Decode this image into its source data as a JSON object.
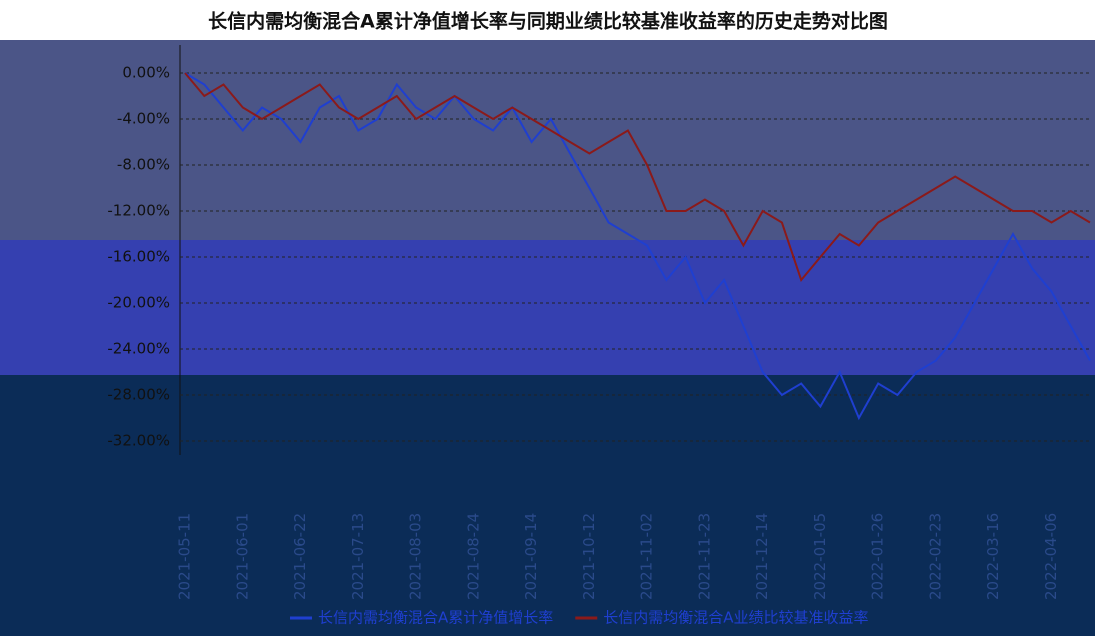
{
  "chart_data": {
    "type": "line",
    "title": "长信内需均衡混合A累计净值增长率与同期业绩比较基准收益率的历史走势对比图",
    "categories": [
      "2021-05-11",
      null,
      null,
      "2021-06-01",
      null,
      null,
      "2021-06-22",
      null,
      null,
      "2021-07-13",
      null,
      null,
      "2021-08-03",
      null,
      null,
      "2021-08-24",
      null,
      null,
      "2021-09-14",
      null,
      null,
      "2021-10-12",
      null,
      null,
      "2021-11-02",
      null,
      null,
      "2021-11-23",
      null,
      null,
      "2021-12-14",
      null,
      null,
      "2022-01-05",
      null,
      null,
      "2022-01-26",
      null,
      null,
      "2022-02-23",
      null,
      null,
      "2022-03-16",
      null,
      null,
      "2022-04-06",
      null,
      null
    ],
    "series": [
      {
        "name": "长信内需均衡混合A累计净值增长率",
        "color": "#1f3fd0",
        "values": [
          0,
          -1,
          -3,
          -5,
          -3,
          -4,
          -6,
          -3,
          -2,
          -5,
          -4,
          -1,
          -3,
          -4,
          -2,
          -4,
          -5,
          -3,
          -6,
          -4,
          -7,
          -10,
          -13,
          -14,
          -15,
          -18,
          -16,
          -20,
          -18,
          -22,
          -26,
          -28,
          -27,
          -29,
          -26,
          -30,
          -27,
          -28,
          -26,
          -25,
          -23,
          -20,
          -17,
          -14,
          -17,
          -19,
          -22,
          -25
        ]
      },
      {
        "name": "长信内需均衡混合A业绩比较基准收益率",
        "color": "#8b1a1a",
        "values": [
          0,
          -2,
          -1,
          -3,
          -4,
          -3,
          -2,
          -1,
          -3,
          -4,
          -3,
          -2,
          -4,
          -3,
          -2,
          -3,
          -4,
          -3,
          -4,
          -5,
          -6,
          -7,
          -6,
          -5,
          -8,
          -12,
          -12,
          -11,
          -12,
          -15,
          -12,
          -13,
          -18,
          -16,
          -14,
          -15,
          -13,
          -12,
          -11,
          -10,
          -9,
          -10,
          -11,
          -12,
          -12,
          -13,
          -12,
          -13
        ]
      }
    ],
    "ylim": [
      1,
      -33
    ],
    "yticks": [
      {
        "value": 0,
        "label": "0.00%"
      },
      {
        "value": -4,
        "label": "-4.00%"
      },
      {
        "value": -8,
        "label": "-8.00%"
      },
      {
        "value": -12,
        "label": "-12.00%"
      },
      {
        "value": -16,
        "label": "-16.00%"
      },
      {
        "value": -20,
        "label": "-20.00%"
      },
      {
        "value": -24,
        "label": "-24.00%"
      },
      {
        "value": -28,
        "label": "-28.00%"
      },
      {
        "value": -32,
        "label": "-32.00%"
      }
    ],
    "grid": true
  }
}
